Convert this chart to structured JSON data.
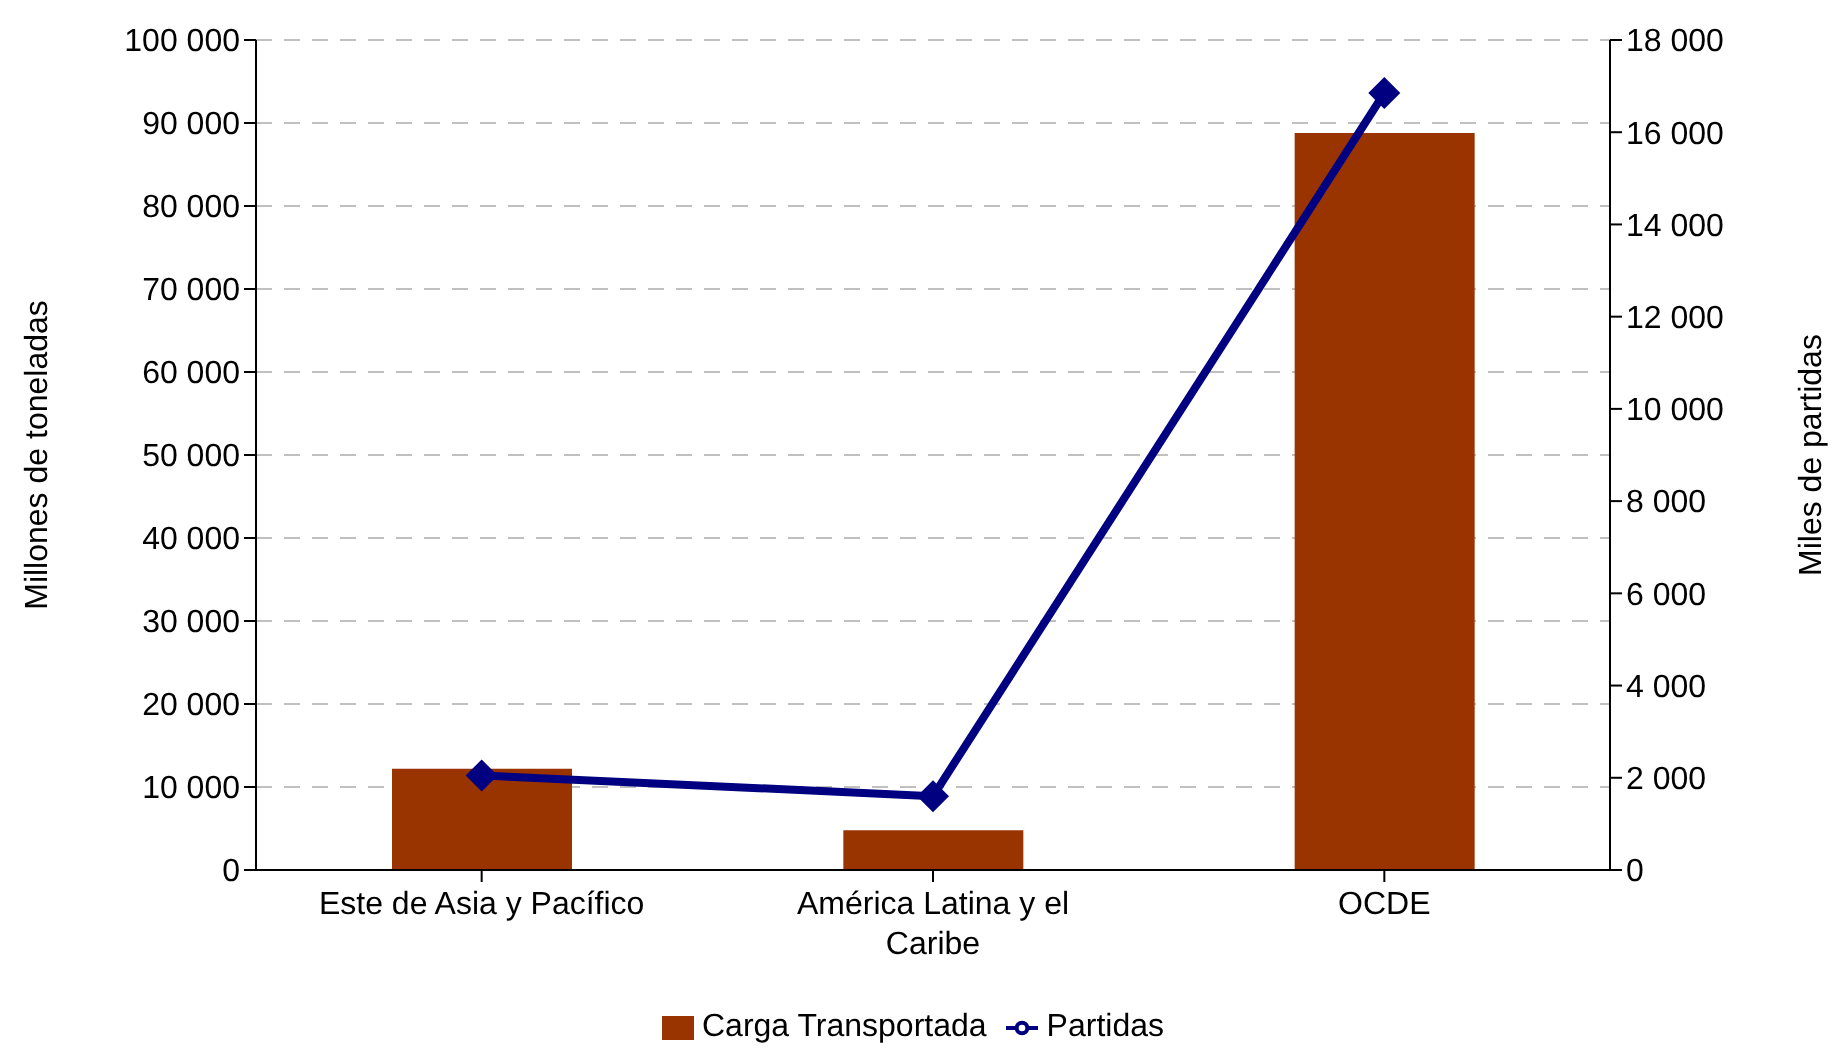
{
  "chart_data": {
    "type": "bar",
    "categories": [
      "Este de Asia y Pacífico",
      "América Latina y el Caribe",
      "OCDE"
    ],
    "series": [
      {
        "name": "Carga Transportada",
        "color": "#993300",
        "values": [
          12200,
          4800,
          88800
        ]
      },
      {
        "name": "Partidas",
        "type": "line",
        "axis": "y2",
        "color": "#000080",
        "values": [
          2050,
          1600,
          16850
        ],
        "marker": "diamond"
      }
    ],
    "ylabel": "Millones de toneladas",
    "y2label": "Miles de partidas",
    "ylim": [
      0,
      100000
    ],
    "yticks": [
      {
        "value": 0,
        "label": "0"
      },
      {
        "value": 10000,
        "label": "10 000"
      },
      {
        "value": 20000,
        "label": "20 000"
      },
      {
        "value": 30000,
        "label": "30 000"
      },
      {
        "value": 40000,
        "label": "40 000"
      },
      {
        "value": 50000,
        "label": "50 000"
      },
      {
        "value": 60000,
        "label": "60 000"
      },
      {
        "value": 70000,
        "label": "70 000"
      },
      {
        "value": 80000,
        "label": "80 000"
      },
      {
        "value": 90000,
        "label": "90 000"
      },
      {
        "value": 100000,
        "label": "100 000"
      }
    ],
    "y2lim": [
      0,
      18000
    ],
    "y2ticks": [
      {
        "value": 0,
        "label": "0"
      },
      {
        "value": 2000,
        "label": "2 000"
      },
      {
        "value": 4000,
        "label": "4 000"
      },
      {
        "value": 6000,
        "label": "6 000"
      },
      {
        "value": 8000,
        "label": "8 000"
      },
      {
        "value": 10000,
        "label": "10 000"
      },
      {
        "value": 12000,
        "label": "12 000"
      },
      {
        "value": 14000,
        "label": "14 000"
      },
      {
        "value": 16000,
        "label": "16 000"
      },
      {
        "value": 18000,
        "label": "18 000"
      }
    ],
    "grid": "y",
    "legend": "bottom"
  }
}
